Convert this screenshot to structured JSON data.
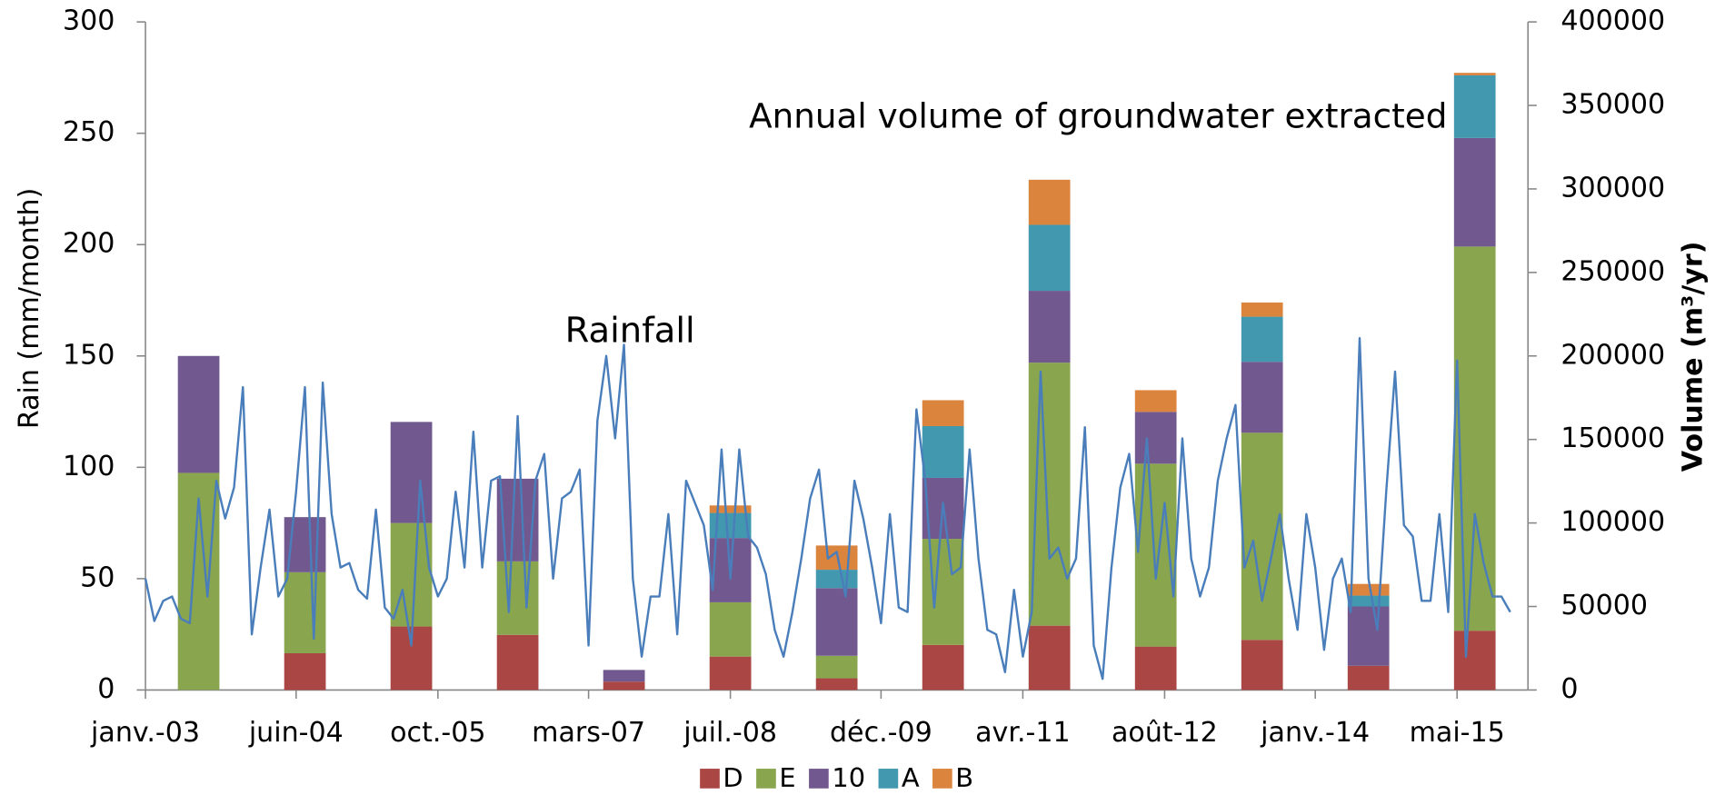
{
  "chart_data": {
    "type": "combo",
    "ylabel": "Rain (mm/month)",
    "y2label": "Volume  (m³/yr)",
    "annotations": [
      "Rainfall",
      "Annual volume of groundwater extracted"
    ],
    "xlim": [
      "2003-01",
      "2016-01"
    ],
    "xticks": [
      {
        "value": "2003-01",
        "label": "janv.-03"
      },
      {
        "value": "2004-06",
        "label": "juin-04"
      },
      {
        "value": "2005-10",
        "label": "oct.-05"
      },
      {
        "value": "2007-03",
        "label": "mars-07"
      },
      {
        "value": "2008-07",
        "label": "juil.-08"
      },
      {
        "value": "2009-12",
        "label": "déc.-09"
      },
      {
        "value": "2011-04",
        "label": "avr.-11"
      },
      {
        "value": "2012-08",
        "label": "août-12"
      },
      {
        "value": "2014-01",
        "label": "janv.-14"
      },
      {
        "value": "2015-05",
        "label": "mai-15"
      }
    ],
    "ylim": [
      0,
      300
    ],
    "yticks": [
      0,
      50,
      100,
      150,
      200,
      250,
      300
    ],
    "y2lim": [
      0,
      400000
    ],
    "y2ticks": [
      0,
      50000,
      100000,
      150000,
      200000,
      250000,
      300000,
      350000,
      400000
    ],
    "legend": "bottom",
    "line": {
      "name": "Rainfall",
      "color": "#4a7ebb",
      "x": [
        "2003-01",
        "2003-02",
        "2003-03",
        "2003-04",
        "2003-05",
        "2003-06",
        "2003-07",
        "2003-08",
        "2003-09",
        "2003-10",
        "2003-11",
        "2003-12",
        "2004-01",
        "2004-02",
        "2004-03",
        "2004-04",
        "2004-05",
        "2004-06",
        "2004-07",
        "2004-08",
        "2004-09",
        "2004-10",
        "2004-11",
        "2004-12",
        "2005-01",
        "2005-02",
        "2005-03",
        "2005-04",
        "2005-05",
        "2005-06",
        "2005-07",
        "2005-08",
        "2005-09",
        "2005-10",
        "2005-11",
        "2005-12",
        "2006-01",
        "2006-02",
        "2006-03",
        "2006-04",
        "2006-05",
        "2006-06",
        "2006-07",
        "2006-08",
        "2006-09",
        "2006-10",
        "2006-11",
        "2006-12",
        "2007-01",
        "2007-02",
        "2007-03",
        "2007-04",
        "2007-05",
        "2007-06",
        "2007-07",
        "2007-08",
        "2007-09",
        "2007-10",
        "2007-11",
        "2007-12",
        "2008-01",
        "2008-02",
        "2008-03",
        "2008-04",
        "2008-05",
        "2008-06",
        "2008-07",
        "2008-08",
        "2008-09",
        "2008-10",
        "2008-11",
        "2008-12",
        "2009-01",
        "2009-02",
        "2009-03",
        "2009-04",
        "2009-05",
        "2009-06",
        "2009-07",
        "2009-08",
        "2009-09",
        "2009-10",
        "2009-11",
        "2009-12",
        "2010-01",
        "2010-02",
        "2010-03",
        "2010-04",
        "2010-05",
        "2010-06",
        "2010-07",
        "2010-08",
        "2010-09",
        "2010-10",
        "2010-11",
        "2010-12",
        "2011-01",
        "2011-02",
        "2011-03",
        "2011-04",
        "2011-05",
        "2011-06",
        "2011-07",
        "2011-08",
        "2011-09",
        "2011-10",
        "2011-11",
        "2011-12",
        "2012-01",
        "2012-02",
        "2012-03",
        "2012-04",
        "2012-05",
        "2012-06",
        "2012-07",
        "2012-08",
        "2012-09",
        "2012-10",
        "2012-11",
        "2012-12",
        "2013-01",
        "2013-02",
        "2013-03",
        "2013-04",
        "2013-05",
        "2013-06",
        "2013-07",
        "2013-08",
        "2013-09",
        "2013-10",
        "2013-11",
        "2013-12",
        "2014-01",
        "2014-02",
        "2014-03",
        "2014-04",
        "2014-05",
        "2014-06",
        "2014-07",
        "2014-08",
        "2014-09",
        "2014-10",
        "2014-11",
        "2014-12",
        "2015-01",
        "2015-02",
        "2015-03",
        "2015-04",
        "2015-05",
        "2015-06",
        "2015-07",
        "2015-08",
        "2015-09",
        "2015-10",
        "2015-11"
      ],
      "values": [
        50,
        31,
        40,
        42,
        32,
        30,
        86,
        42,
        94,
        77,
        91,
        136,
        25,
        55,
        81,
        42,
        50,
        89,
        136,
        23,
        138,
        79,
        55,
        57,
        45,
        41,
        81,
        37,
        32,
        45,
        20,
        94,
        55,
        42,
        50,
        89,
        55,
        116,
        55,
        94,
        96,
        35,
        123,
        37,
        94,
        106,
        50,
        86,
        89,
        99,
        20,
        121,
        150,
        113,
        155,
        50,
        15,
        42,
        42,
        79,
        25,
        94,
        84,
        74,
        45,
        108,
        50,
        108,
        69,
        64,
        52,
        27,
        15,
        35,
        59,
        86,
        99,
        59,
        62,
        42,
        94,
        77,
        55,
        30,
        79,
        37,
        35,
        126,
        94,
        37,
        84,
        52,
        55,
        108,
        59,
        27,
        25,
        8,
        45,
        15,
        35,
        143,
        59,
        64,
        50,
        59,
        118,
        20,
        5,
        55,
        91,
        106,
        62,
        113,
        50,
        84,
        42,
        113,
        59,
        42,
        55,
        94,
        113,
        128,
        55,
        67,
        40,
        59,
        79,
        50,
        27,
        79,
        55,
        18,
        50,
        59,
        35,
        158,
        50,
        27,
        89,
        143,
        74,
        69,
        40,
        40,
        79,
        35,
        148,
        15,
        79,
        57,
        42,
        42,
        35
      ]
    },
    "bar_x": [
      "2003-07",
      "2004-07",
      "2005-07",
      "2006-07",
      "2007-07",
      "2008-07",
      "2009-07",
      "2010-07",
      "2011-07",
      "2012-07",
      "2013-07",
      "2014-07",
      "2015-07"
    ],
    "series": [
      {
        "name": "D",
        "color": "#aa4643",
        "axis": "y2",
        "values": [
          0,
          22000,
          38000,
          33000,
          5000,
          20000,
          7000,
          27000,
          38500,
          26000,
          30000,
          14500,
          35500
        ]
      },
      {
        "name": "E",
        "color": "#89a54e",
        "axis": "y2",
        "values": [
          130000,
          48500,
          62000,
          44000,
          0,
          32500,
          13500,
          63500,
          157500,
          109500,
          124000,
          0,
          230000
        ]
      },
      {
        "name": "10",
        "color": "#71588f",
        "axis": "y2",
        "values": [
          70000,
          33000,
          60500,
          49500,
          7000,
          38500,
          40500,
          36500,
          43000,
          31000,
          42500,
          35500,
          65000
        ]
      },
      {
        "name": "A",
        "color": "#4198af",
        "axis": "y2",
        "values": [
          0,
          0,
          0,
          0,
          0,
          15000,
          11000,
          31000,
          39500,
          0,
          27000,
          6500,
          37500
        ]
      },
      {
        "name": "B",
        "color": "#db843d",
        "axis": "y2",
        "values": [
          0,
          0,
          0,
          0,
          0,
          4500,
          14500,
          15500,
          27000,
          13000,
          8500,
          7000,
          1500
        ]
      }
    ]
  }
}
